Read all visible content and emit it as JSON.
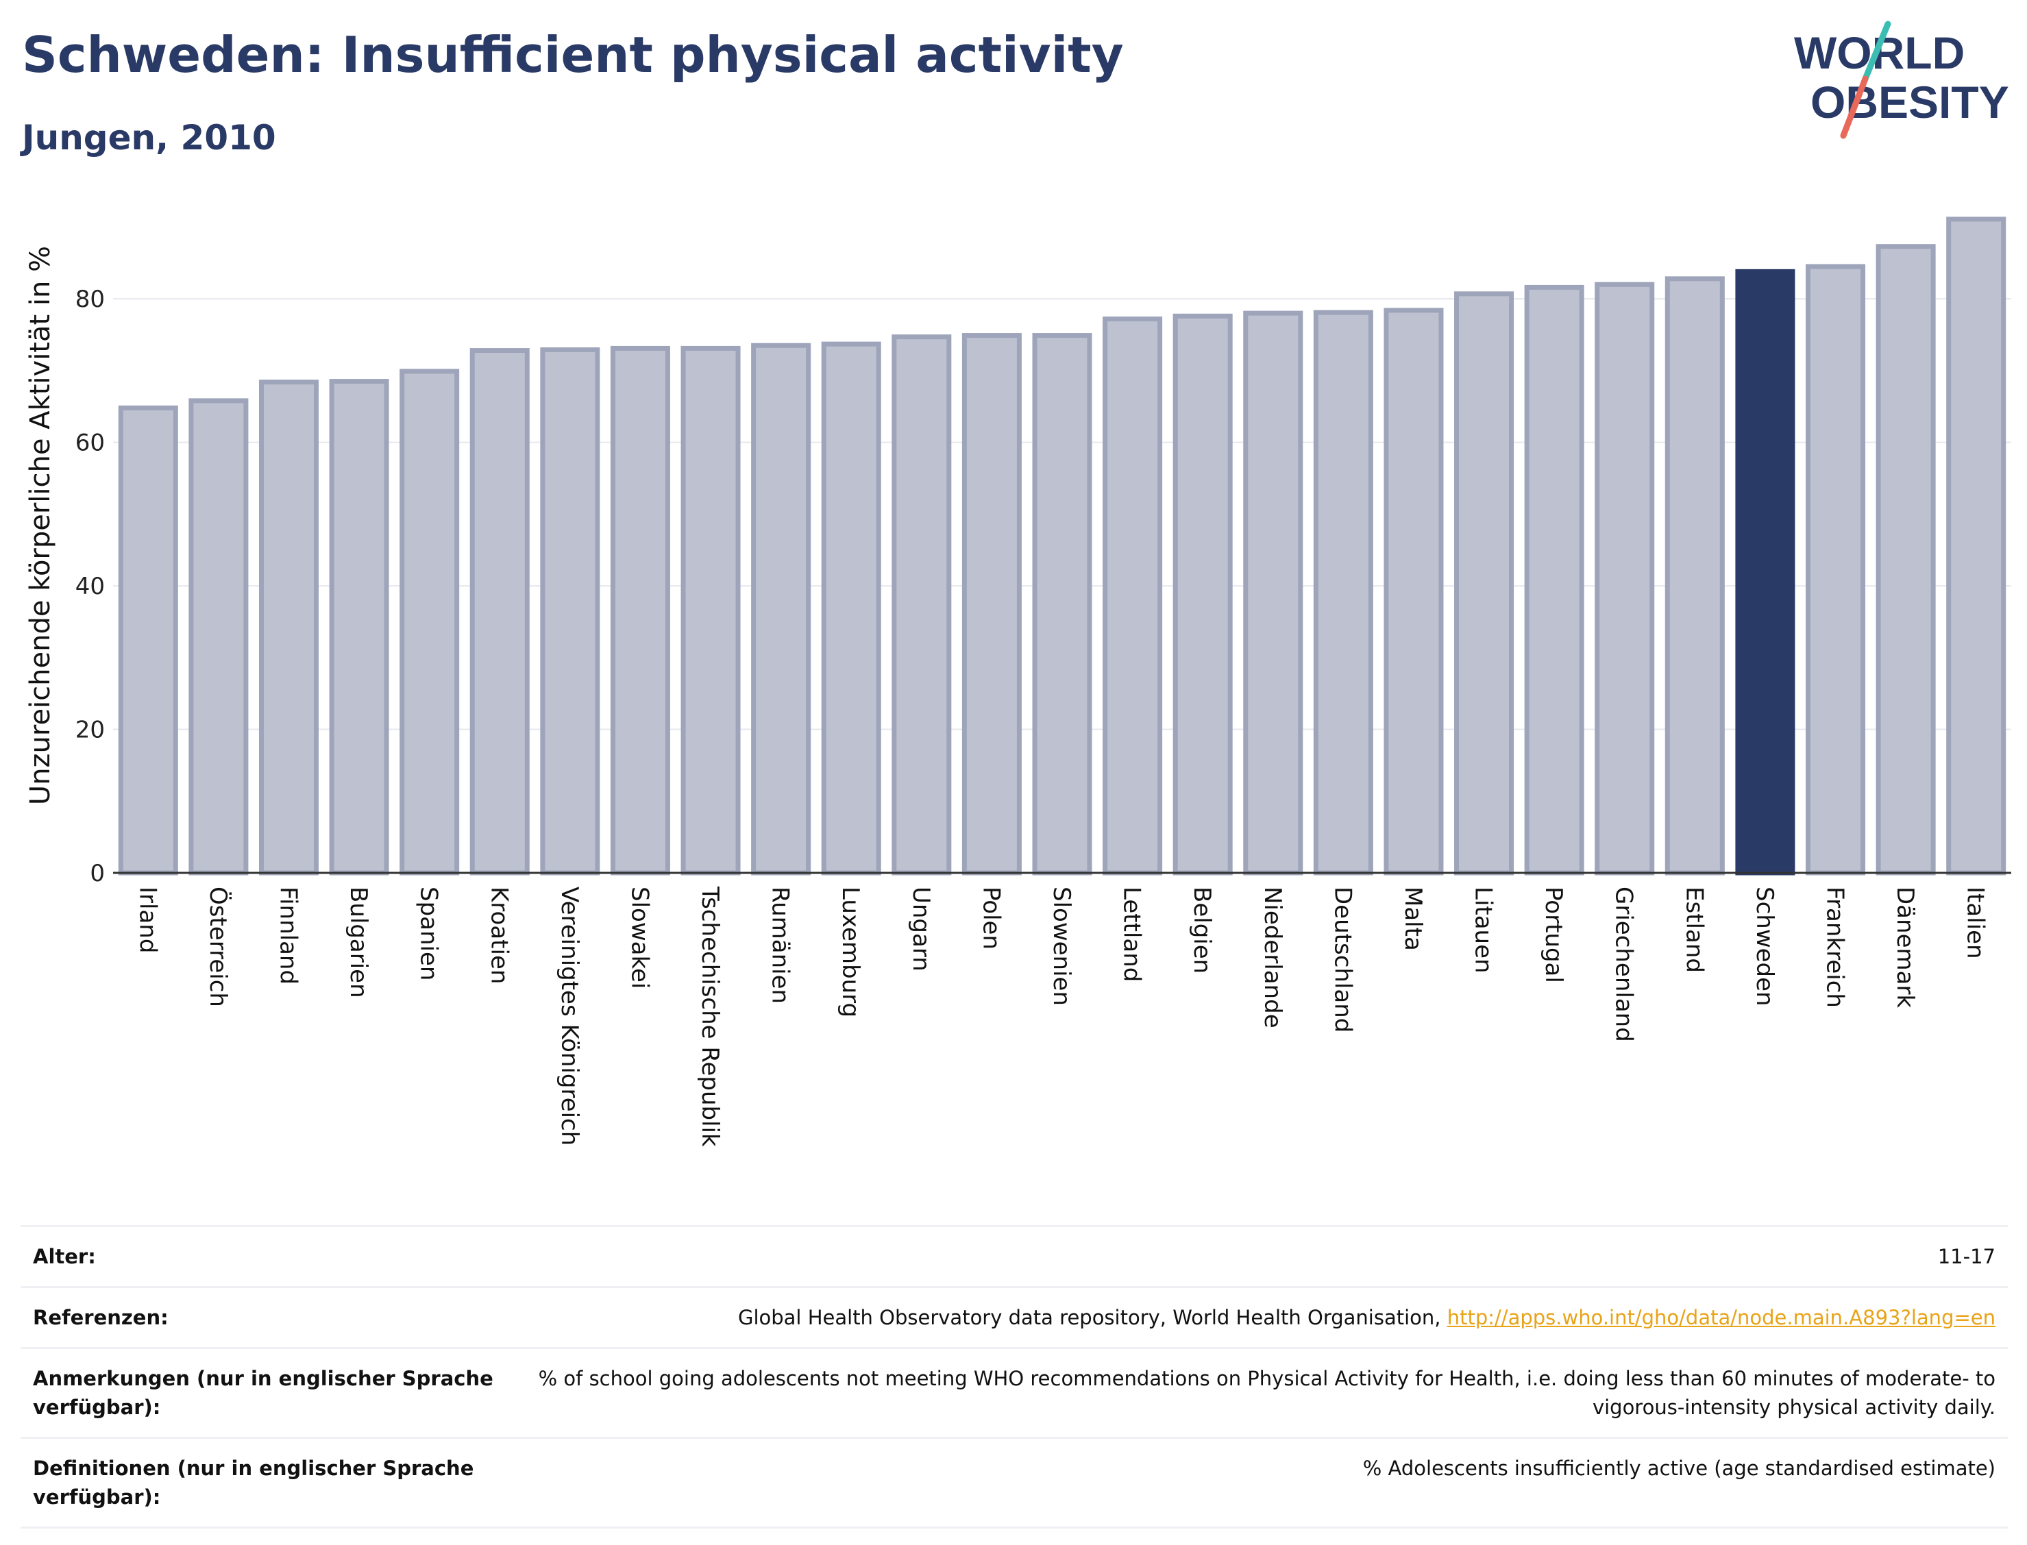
{
  "header": {
    "title": "Schweden: Insufficient physical activity",
    "subtitle": "Jungen, 2010"
  },
  "logo": {
    "line1": "WORLD",
    "line2": "OBESITY",
    "colors": {
      "text": "#2a3a66",
      "slash_top": "#3cbdb4",
      "slash_bottom": "#e8685a"
    }
  },
  "chart_data": {
    "type": "bar",
    "ylabel": "Unzureichende körperliche Aktivität in %",
    "ylim": [
      0,
      93
    ],
    "yticks": [
      0,
      20,
      40,
      60,
      80
    ],
    "grid": true,
    "highlight": "Schweden",
    "colors": {
      "bar": "#bdc1d0",
      "bar_edge": "#9ea4ba",
      "highlight": "#2a3a66",
      "axis": "#333333",
      "grid": "#e6e8ee"
    },
    "categories": [
      "Irland",
      "Österreich",
      "Finnland",
      "Bulgarien",
      "Spanien",
      "Kroatien",
      "Vereinigtes Königreich",
      "Slowakei",
      "Tschechische Republik",
      "Rumänien",
      "Luxemburg",
      "Ungarn",
      "Polen",
      "Slowenien",
      "Lettland",
      "Belgien",
      "Niederlande",
      "Deutschland",
      "Malta",
      "Litauen",
      "Portugal",
      "Griechenland",
      "Estland",
      "Schweden",
      "Frankreich",
      "Dänemark",
      "Italien"
    ],
    "values": [
      64.8,
      65.8,
      68.4,
      68.5,
      69.9,
      72.8,
      72.9,
      73.1,
      73.1,
      73.5,
      73.7,
      74.7,
      74.9,
      74.9,
      77.2,
      77.6,
      78.0,
      78.1,
      78.4,
      80.7,
      81.6,
      82.0,
      82.8,
      83.8,
      84.5,
      87.3,
      91.1
    ]
  },
  "meta": {
    "age_label": "Alter:",
    "age_value": "11-17",
    "refs_label": "Referenzen:",
    "refs_text": "Global Health Observatory data repository, World Health Organisation, ",
    "refs_link": "http://apps.who.int/gho/data/node.main.A893?lang=en",
    "notes_label": "Anmerkungen (nur in englischer Sprache verfügbar):",
    "notes_value": "% of school going adolescents not meeting WHO recommendations on Physical Activity for Health, i.e. doing less than 60 minutes of moderate- to vigorous-intensity physical activity daily.",
    "defs_label": "Definitionen (nur in englischer Sprache verfügbar):",
    "defs_value": "% Adolescents insufficiently active (age standardised estimate)"
  }
}
